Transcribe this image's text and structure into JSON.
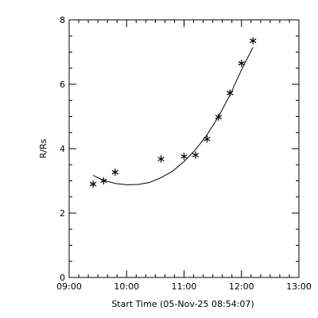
{
  "chart_data": {
    "type": "scatter",
    "title": "",
    "xlabel": "Start Time (05-Nov-25 08:54:07)",
    "ylabel": "R/Rs",
    "xlim": [
      "09:00",
      "13:00"
    ],
    "ylim": [
      0,
      8
    ],
    "x_ticks": [
      "09:00",
      "10:00",
      "11:00",
      "12:00",
      "13:00"
    ],
    "y_ticks": [
      "0",
      "2",
      "4",
      "6",
      "8"
    ],
    "grid": false,
    "series": [
      {
        "marker": "asterisk",
        "points": [
          {
            "x": "09:25",
            "y": 2.9
          },
          {
            "x": "09:36",
            "y": 3.0
          },
          {
            "x": "09:48",
            "y": 3.27
          },
          {
            "x": "10:36",
            "y": 3.68
          },
          {
            "x": "11:00",
            "y": 3.76
          },
          {
            "x": "11:12",
            "y": 3.8
          },
          {
            "x": "11:24",
            "y": 4.3
          },
          {
            "x": "11:36",
            "y": 4.98
          },
          {
            "x": "11:48",
            "y": 5.73
          },
          {
            "x": "12:00",
            "y": 6.65
          },
          {
            "x": "12:12",
            "y": 7.35
          }
        ]
      }
    ],
    "fit_curve": {
      "style": "solid",
      "points": [
        {
          "x": "09:25",
          "y": 3.17
        },
        {
          "x": "09:36",
          "y": 3.02
        },
        {
          "x": "09:48",
          "y": 2.92
        },
        {
          "x": "10:00",
          "y": 2.88
        },
        {
          "x": "10:12",
          "y": 2.89
        },
        {
          "x": "10:24",
          "y": 2.95
        },
        {
          "x": "10:36",
          "y": 3.1
        },
        {
          "x": "10:48",
          "y": 3.3
        },
        {
          "x": "11:00",
          "y": 3.6
        },
        {
          "x": "11:12",
          "y": 3.97
        },
        {
          "x": "11:24",
          "y": 4.43
        },
        {
          "x": "11:36",
          "y": 5.0
        },
        {
          "x": "11:48",
          "y": 5.67
        },
        {
          "x": "12:00",
          "y": 6.45
        },
        {
          "x": "12:12",
          "y": 7.15
        }
      ]
    }
  }
}
